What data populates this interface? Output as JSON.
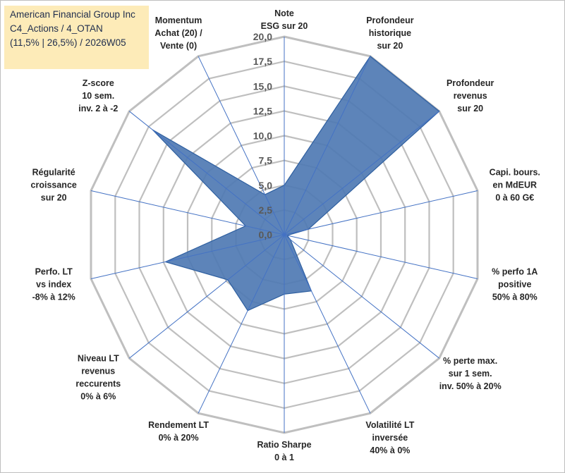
{
  "title_box": {
    "line1": "American Financial Group Inc",
    "line2": "C4_Actions / 4_OTAN",
    "line3": "(11,5% | 26,5%) / 2026W05"
  },
  "colors": {
    "fill": "#4f7ab3",
    "stroke": "#2e5fa0",
    "grid": "#bfbfbf",
    "spoke": "#4472c4"
  },
  "chart_data": {
    "type": "radar",
    "title": "American Financial Group Inc",
    "rlim": [
      0,
      20
    ],
    "grid": true,
    "tick_labels": [
      "0,0",
      "2,5",
      "5,0",
      "7,5",
      "10,0",
      "12,5",
      "15,0",
      "17,5",
      "20,0"
    ],
    "axes": [
      {
        "lines": [
          "Note",
          "ESG sur 20"
        ],
        "value": 5.0
      },
      {
        "lines": [
          "Profondeur",
          "historique",
          "sur 20"
        ],
        "value": 20.0
      },
      {
        "lines": [
          "Profondeur",
          "revenus",
          "sur 20"
        ],
        "value": 20.0
      },
      {
        "lines": [
          "Capi. bours.",
          "en MdEUR",
          "0 à 60 G€"
        ],
        "value": 2.5
      },
      {
        "lines": [
          "% perfo 1A",
          "positive",
          "50% à 80%"
        ],
        "value": 0.3
      },
      {
        "lines": [
          "% perte max.",
          "sur 1 sem.",
          "inv. 50% à 20%"
        ],
        "value": 0.8
      },
      {
        "lines": [
          "Volatilité LT",
          "inversée",
          "40% à 0%"
        ],
        "value": 6.3
      },
      {
        "lines": [
          "Ratio Sharpe",
          "0 à 1"
        ],
        "value": 6.0
      },
      {
        "lines": [
          "Rendement LT",
          "0% à 20%"
        ],
        "value": 8.5
      },
      {
        "lines": [
          "Niveau LT",
          "revenus",
          "reccurents",
          "0% à 6%"
        ],
        "value": 7.3
      },
      {
        "lines": [
          "Perfo. LT",
          "vs index",
          "-8% à 12%"
        ],
        "value": 12.3
      },
      {
        "lines": [
          "Régularité",
          "croissance",
          "sur 20"
        ],
        "value": 4.0
      },
      {
        "lines": [
          "Z-score",
          "10 sem.",
          "inv. 2 à -2"
        ],
        "value": 17.0
      },
      {
        "lines": [
          "Momentum",
          "Achat (20) /",
          "Vente (0)"
        ],
        "value": 4.5
      }
    ]
  }
}
